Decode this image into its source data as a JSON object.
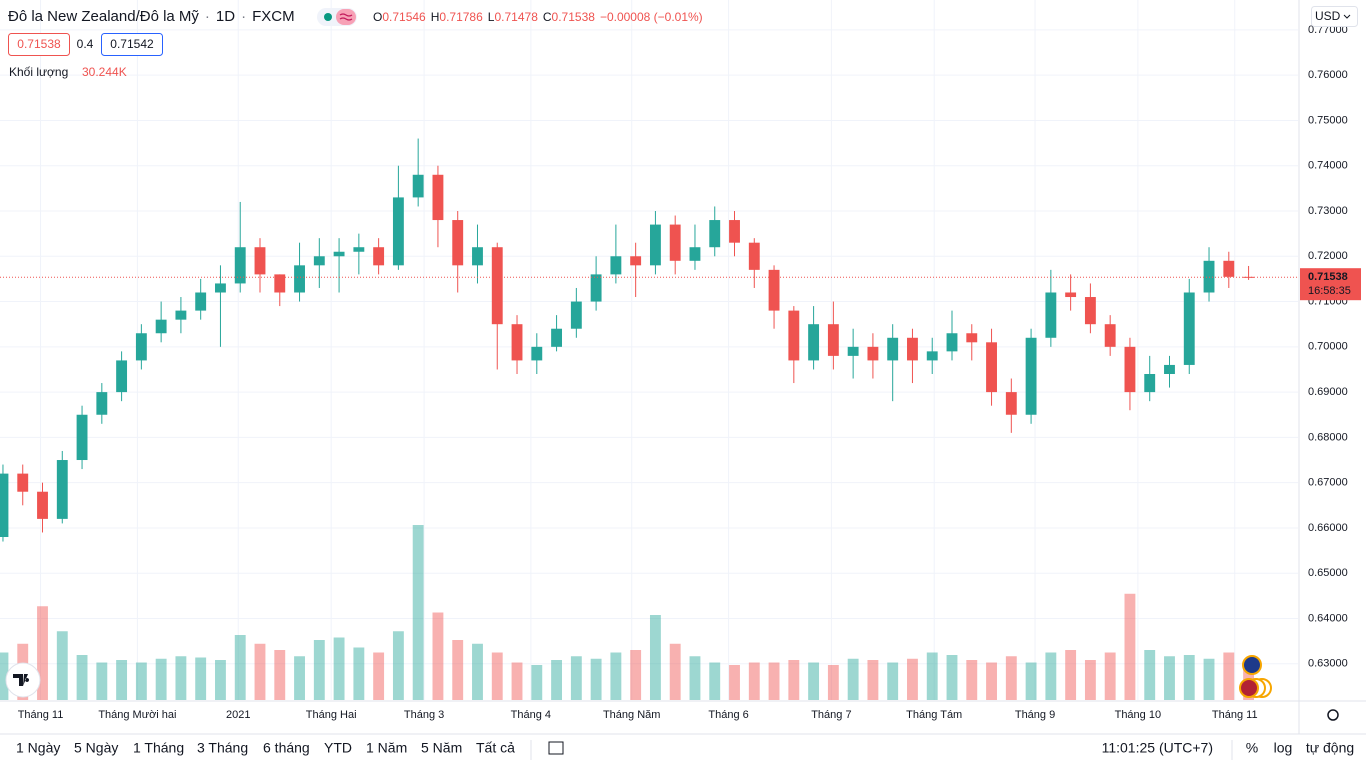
{
  "header": {
    "symbol": "Đô la New Zealand/Đô la Mỹ",
    "separator": "·",
    "interval": "1D",
    "exchange": "FXCM",
    "ohlc_labels": [
      "O",
      "H",
      "L",
      "C"
    ],
    "change": "−0.00008 (−0.01%)"
  },
  "quote": {
    "sell": 0.71538,
    "spread": 0.4,
    "buy": 0.71542
  },
  "currency": "USD",
  "countdown": "16:58:35",
  "chart_data": {
    "type": "candlestick",
    "volume_name": "Khối lượng",
    "volume_label": "30.244K",
    "open": [
      0.658,
      0.672,
      0.668,
      0.662,
      0.675,
      0.685,
      0.69,
      0.697,
      0.703,
      0.706,
      0.708,
      0.712,
      0.714,
      0.722,
      0.716,
      0.712,
      0.718,
      0.72,
      0.721,
      0.722,
      0.718,
      0.733,
      0.738,
      0.728,
      0.718,
      0.722,
      0.705,
      0.697,
      0.7,
      0.704,
      0.71,
      0.716,
      0.72,
      0.718,
      0.727,
      0.719,
      0.722,
      0.728,
      0.723,
      0.717,
      0.708,
      0.697,
      0.705,
      0.698,
      0.7,
      0.697,
      0.702,
      0.697,
      0.699,
      0.703,
      0.701,
      0.69,
      0.685,
      0.702,
      0.712,
      0.711,
      0.705,
      0.7,
      0.69,
      0.694,
      0.696,
      0.712,
      0.719,
      0.71546
    ],
    "high": [
      0.674,
      0.674,
      0.67,
      0.677,
      0.687,
      0.692,
      0.699,
      0.705,
      0.71,
      0.711,
      0.715,
      0.718,
      0.732,
      0.724,
      0.716,
      0.723,
      0.724,
      0.724,
      0.725,
      0.724,
      0.74,
      0.746,
      0.74,
      0.73,
      0.727,
      0.723,
      0.707,
      0.703,
      0.707,
      0.713,
      0.72,
      0.727,
      0.723,
      0.73,
      0.729,
      0.727,
      0.731,
      0.73,
      0.724,
      0.718,
      0.709,
      0.709,
      0.71,
      0.704,
      0.703,
      0.705,
      0.704,
      0.702,
      0.708,
      0.705,
      0.704,
      0.693,
      0.704,
      0.717,
      0.716,
      0.714,
      0.707,
      0.702,
      0.698,
      0.698,
      0.715,
      0.722,
      0.721,
      0.71786
    ],
    "low": [
      0.657,
      0.665,
      0.659,
      0.661,
      0.673,
      0.683,
      0.688,
      0.695,
      0.701,
      0.703,
      0.706,
      0.7,
      0.712,
      0.712,
      0.709,
      0.71,
      0.713,
      0.712,
      0.716,
      0.716,
      0.717,
      0.731,
      0.722,
      0.712,
      0.714,
      0.695,
      0.694,
      0.694,
      0.699,
      0.702,
      0.708,
      0.714,
      0.711,
      0.716,
      0.716,
      0.717,
      0.72,
      0.72,
      0.713,
      0.704,
      0.692,
      0.695,
      0.695,
      0.693,
      0.693,
      0.688,
      0.692,
      0.694,
      0.697,
      0.697,
      0.687,
      0.681,
      0.683,
      0.7,
      0.708,
      0.703,
      0.698,
      0.686,
      0.688,
      0.691,
      0.694,
      0.71,
      0.713,
      0.71478
    ],
    "close": [
      0.672,
      0.668,
      0.662,
      0.675,
      0.685,
      0.69,
      0.697,
      0.703,
      0.706,
      0.708,
      0.712,
      0.714,
      0.722,
      0.716,
      0.712,
      0.718,
      0.72,
      0.721,
      0.722,
      0.718,
      0.733,
      0.738,
      0.728,
      0.718,
      0.722,
      0.705,
      0.697,
      0.7,
      0.704,
      0.71,
      0.716,
      0.72,
      0.718,
      0.727,
      0.719,
      0.722,
      0.728,
      0.723,
      0.717,
      0.708,
      0.697,
      0.705,
      0.698,
      0.7,
      0.697,
      0.702,
      0.697,
      0.699,
      0.703,
      0.701,
      0.69,
      0.685,
      0.702,
      0.712,
      0.711,
      0.705,
      0.7,
      0.69,
      0.694,
      0.696,
      0.712,
      0.719,
      0.71546,
      0.71538
    ],
    "volume": [
      38,
      45,
      75,
      55,
      36,
      30,
      32,
      30,
      33,
      35,
      34,
      32,
      52,
      45,
      40,
      35,
      48,
      50,
      42,
      38,
      55,
      140,
      70,
      48,
      45,
      38,
      30,
      28,
      32,
      35,
      33,
      38,
      40,
      68,
      45,
      35,
      30,
      28,
      30,
      30,
      32,
      30,
      28,
      33,
      32,
      30,
      33,
      38,
      36,
      32,
      30,
      35,
      30,
      38,
      40,
      32,
      38,
      85,
      40,
      35,
      36,
      33,
      38,
      30.244
    ],
    "up_color": "#26a69a",
    "down_color": "#ef5350",
    "xlim": [
      -0.15,
      65.5
    ],
    "xticks": [
      {
        "value": 1.9,
        "label": "Tháng 11"
      },
      {
        "value": 6.8,
        "label": "Tháng Mười hai"
      },
      {
        "value": 11.9,
        "label": "2021"
      },
      {
        "value": 16.6,
        "label": "Tháng Hai"
      },
      {
        "value": 21.3,
        "label": "Tháng 3"
      },
      {
        "value": 26.7,
        "label": "Tháng 4"
      },
      {
        "value": 31.8,
        "label": "Tháng Năm"
      },
      {
        "value": 36.7,
        "label": "Tháng 6"
      },
      {
        "value": 41.9,
        "label": "Tháng 7"
      },
      {
        "value": 47.1,
        "label": "Tháng Tám"
      },
      {
        "value": 52.2,
        "label": "Tháng 9"
      },
      {
        "value": 57.4,
        "label": "Tháng 10"
      },
      {
        "value": 62.3,
        "label": "Tháng 11"
      }
    ],
    "ylim": [
      0.622,
      0.7766
    ],
    "yticks": [
      {
        "value": 0.77,
        "label": "0.77000"
      },
      {
        "value": 0.76,
        "label": "0.76000"
      },
      {
        "value": 0.75,
        "label": "0.75000"
      },
      {
        "value": 0.74,
        "label": "0.74000"
      },
      {
        "value": 0.73,
        "label": "0.73000"
      },
      {
        "value": 0.72,
        "label": "0.72000"
      },
      {
        "value": 0.71,
        "label": "0.71000"
      },
      {
        "value": 0.7,
        "label": "0.70000"
      },
      {
        "value": 0.69,
        "label": "0.69000"
      },
      {
        "value": 0.68,
        "label": "0.68000"
      },
      {
        "value": 0.67,
        "label": "0.67000"
      },
      {
        "value": 0.66,
        "label": "0.66000"
      },
      {
        "value": 0.65,
        "label": "0.65000"
      },
      {
        "value": 0.64,
        "label": "0.64000"
      },
      {
        "value": 0.63,
        "label": "0.63000"
      }
    ],
    "grid": true
  },
  "toolbar": {
    "ranges": [
      "1 Ngày",
      "5 Ngày",
      "1 Tháng",
      "3 Tháng",
      "6 tháng",
      "YTD",
      "1 Năm",
      "5 Năm",
      "Tất cả"
    ],
    "clock": "11:01:25 (UTC+7)",
    "options": [
      "%",
      "log",
      "tự động"
    ]
  }
}
